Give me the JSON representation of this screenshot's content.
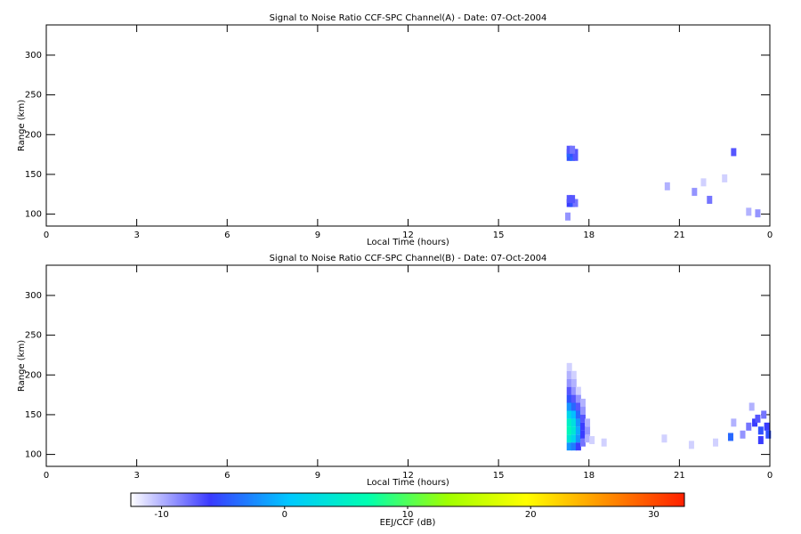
{
  "chart_data": [
    {
      "type": "heatmap",
      "title": "Signal to Noise Ratio CCF-SPC Channel(A) - Date: 07-Oct-2004",
      "xlabel": "Local Time (hours)",
      "ylabel": "Range (km)",
      "xlim": [
        0,
        24
      ],
      "xticks": [
        0,
        3,
        6,
        9,
        12,
        15,
        18,
        21,
        {
          "value": 24,
          "label": "0"
        }
      ],
      "ylim": [
        85,
        338
      ],
      "yticks": [
        100,
        150,
        200,
        250,
        300
      ],
      "x": [
        17.35,
        17.45,
        17.55,
        17.35,
        17.45,
        17.55,
        17.35,
        17.45,
        17.35,
        17.45,
        17.55,
        17.35,
        17.45,
        17.3,
        21.5,
        22.0,
        22.8,
        23.3,
        23.6,
        20.6,
        21.8,
        22.5
      ],
      "y": [
        172,
        172,
        172,
        177,
        177,
        177,
        181,
        181,
        114,
        114,
        114,
        119,
        119,
        97,
        128,
        118,
        178,
        103,
        101,
        135,
        140,
        145
      ],
      "values": [
        -5,
        -4,
        -7,
        -4,
        -5,
        -7,
        -7,
        -8,
        -6,
        -5,
        -8,
        -7,
        -7,
        -9,
        -9,
        -8,
        -7,
        -10,
        -9,
        -10,
        -11,
        -11
      ]
    },
    {
      "type": "heatmap",
      "title": "Signal to Noise Ratio CCF-SPC Channel(B) - Date: 07-Oct-2004",
      "xlabel": "Local Time (hours)",
      "ylabel": "Range (km)",
      "xlim": [
        0,
        24
      ],
      "xticks": [
        0,
        3,
        6,
        9,
        12,
        15,
        18,
        21,
        {
          "value": 24,
          "label": "0"
        }
      ],
      "ylim": [
        85,
        338
      ],
      "yticks": [
        100,
        150,
        200,
        250,
        300
      ],
      "x": [
        17.35,
        17.35,
        17.35,
        17.35,
        17.35,
        17.35,
        17.35,
        17.35,
        17.35,
        17.35,
        17.35,
        17.5,
        17.5,
        17.5,
        17.5,
        17.5,
        17.5,
        17.5,
        17.5,
        17.5,
        17.5,
        17.65,
        17.65,
        17.65,
        17.65,
        17.65,
        17.65,
        17.65,
        17.65,
        17.8,
        17.8,
        17.8,
        17.8,
        17.8,
        17.8,
        17.95,
        17.95,
        17.95,
        18.1,
        23.3,
        23.5,
        23.7,
        23.9,
        23.8,
        23.6,
        23.95,
        23.1,
        22.8,
        23.4,
        22.2,
        21.4,
        20.5,
        18.5,
        22.7,
        23.7
      ],
      "y": [
        110,
        120,
        130,
        140,
        150,
        160,
        170,
        180,
        190,
        200,
        210,
        110,
        120,
        130,
        140,
        150,
        160,
        170,
        180,
        190,
        200,
        110,
        120,
        130,
        140,
        150,
        160,
        170,
        180,
        115,
        125,
        135,
        145,
        155,
        165,
        120,
        130,
        140,
        118,
        135,
        140,
        130,
        135,
        150,
        145,
        125,
        125,
        140,
        160,
        115,
        112,
        120,
        115,
        122,
        118
      ],
      "values": [
        -2,
        4,
        6,
        5,
        2,
        -2,
        -5,
        -7,
        -9,
        -10,
        -11,
        -3,
        2,
        4,
        3,
        0,
        -4,
        -7,
        -9,
        -10,
        -11,
        -6,
        -2,
        -1,
        -2,
        -4,
        -7,
        -9,
        -11,
        -8,
        -6,
        -6,
        -7,
        -9,
        -10,
        -10,
        -9,
        -10,
        -11,
        -8,
        -6,
        -5,
        -6,
        -8,
        -7,
        -5,
        -9,
        -10,
        -10,
        -11,
        -11,
        -11,
        -11,
        -4,
        -6
      ]
    }
  ],
  "colorbar": {
    "label": "EEJ/CCF (dB)",
    "clim": [
      -12.5,
      32.5
    ],
    "ticks": [
      -10,
      0,
      10,
      20,
      30
    ],
    "colormap": [
      "#ffffff",
      "#3a3aff",
      "#00c8ff",
      "#00ffb0",
      "#a0ff00",
      "#ffff00",
      "#ff9000",
      "#ff2000"
    ]
  }
}
